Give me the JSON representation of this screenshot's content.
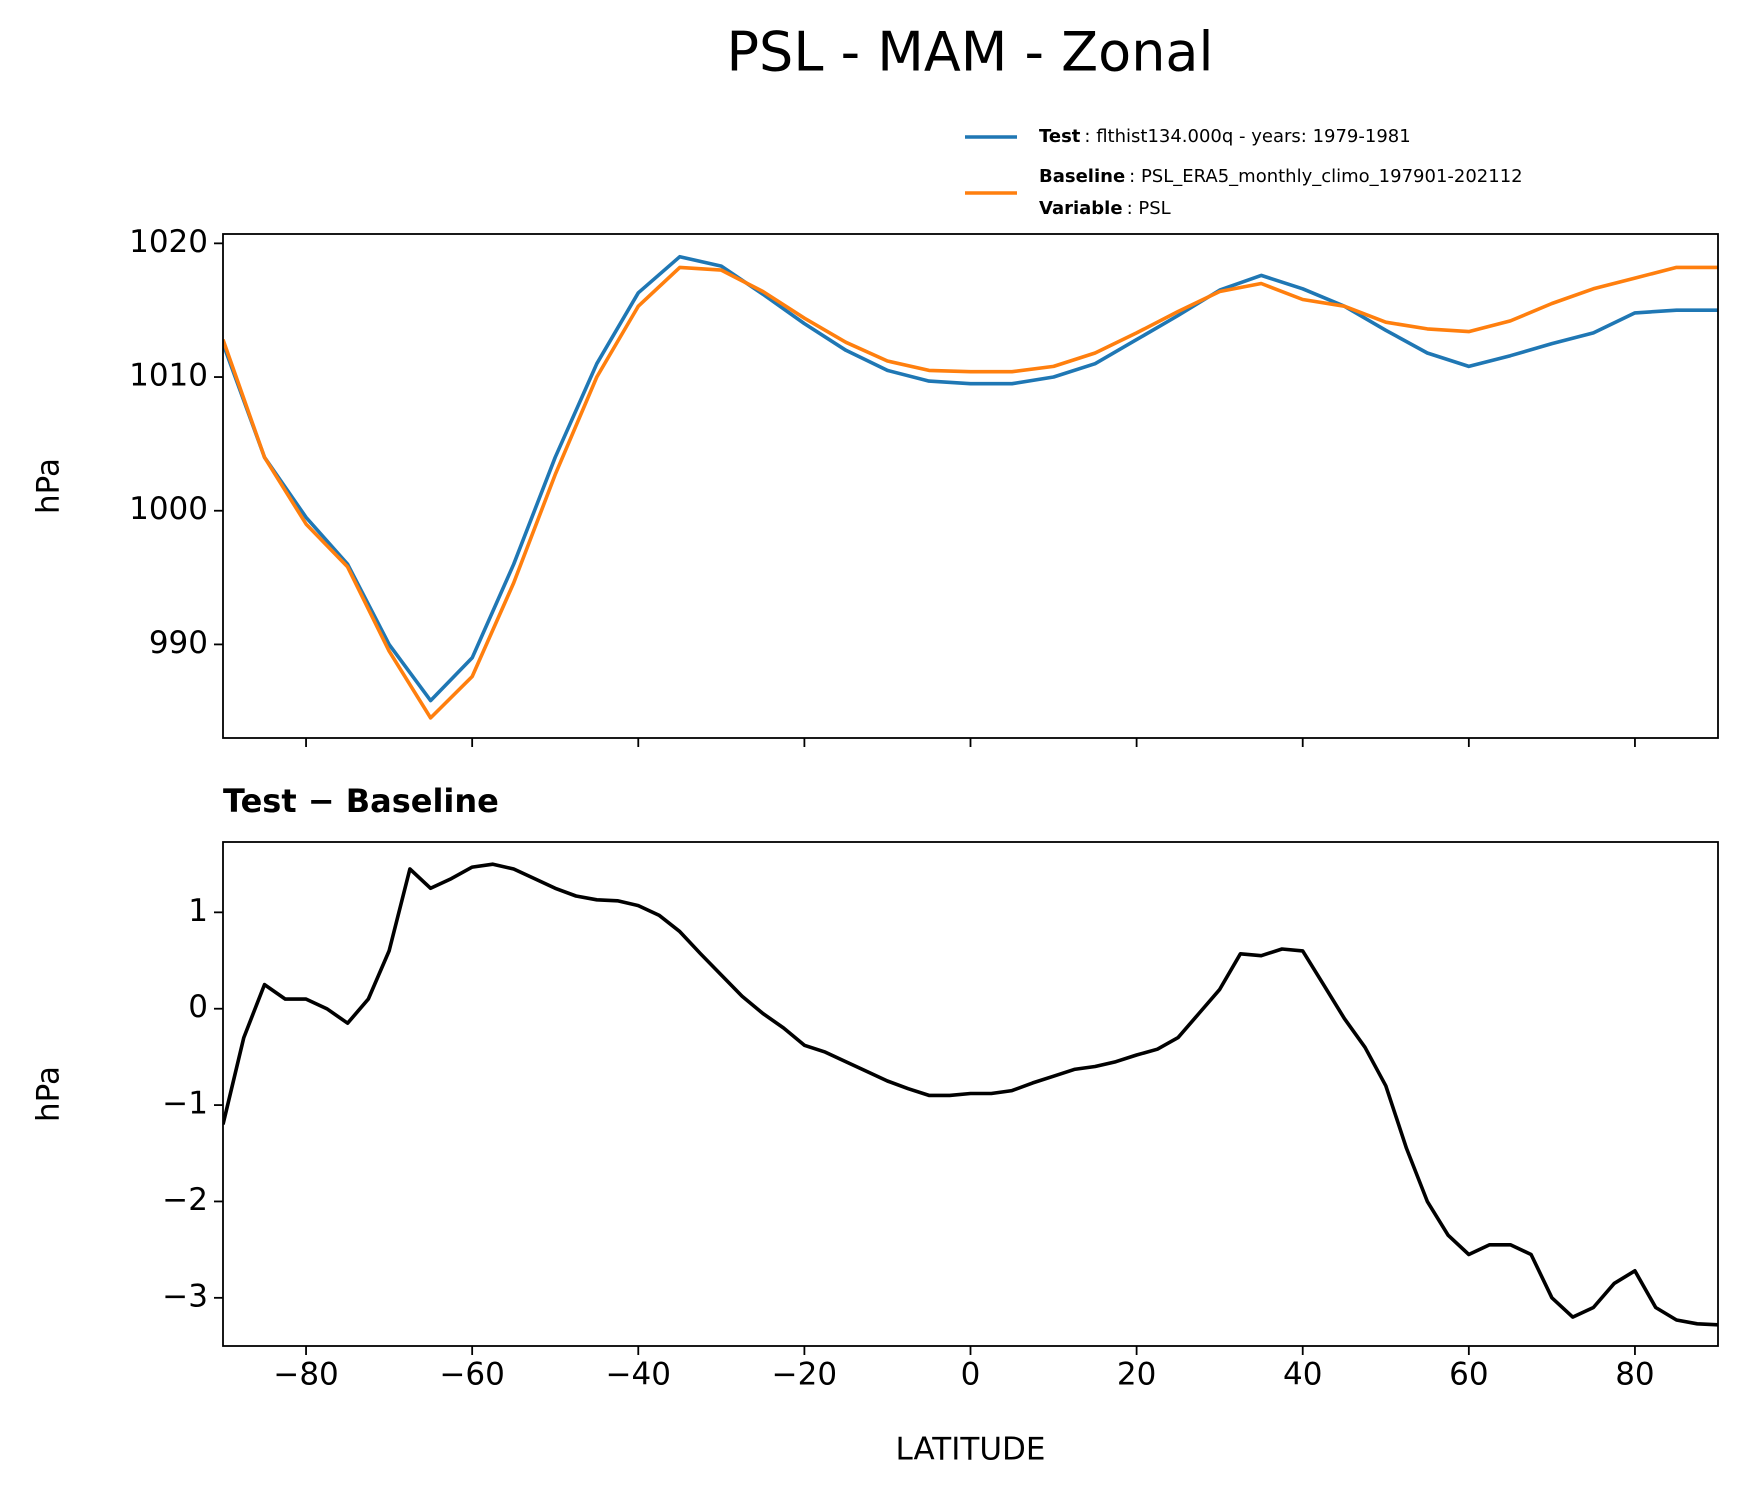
{
  "title": "PSL - MAM - Zonal",
  "chart_data": [
    {
      "type": "line",
      "ylabel": "hPa",
      "x": [
        -90,
        -85,
        -80,
        -75,
        -70,
        -65,
        -60,
        -55,
        -50,
        -45,
        -40,
        -35,
        -30,
        -25,
        -20,
        -15,
        -10,
        -5,
        0,
        5,
        10,
        15,
        20,
        25,
        30,
        35,
        40,
        45,
        50,
        55,
        60,
        65,
        70,
        75,
        80,
        85,
        90
      ],
      "series": [
        {
          "name": "Test",
          "description": ": flthist134.000q - years: 1979-1981",
          "color": "#1f77b4",
          "values": [
            1012.5,
            1004,
            999.5,
            996,
            990,
            985.8,
            989,
            996,
            1004,
            1011,
            1016.3,
            1019,
            1018.3,
            1016.2,
            1014,
            1012,
            1010.5,
            1009.7,
            1009.5,
            1009.5,
            1010,
            1011,
            1012.8,
            1014.6,
            1016.5,
            1017.6,
            1016.6,
            1015.3,
            1013.5,
            1011.8,
            1010.8,
            1011.6,
            1012.5,
            1013.3,
            1014.8,
            1015,
            1015
          ]
        },
        {
          "name": "Baseline",
          "description": ": PSL_ERA5_monthly_climo_197901-202112",
          "color": "#ff7f0e",
          "values": [
            1012.8,
            1004,
            999,
            995.8,
            989.5,
            984.5,
            987.6,
            994.6,
            1002.7,
            1010,
            1015.3,
            1018.2,
            1018,
            1016.4,
            1014.4,
            1012.6,
            1011.2,
            1010.5,
            1010.4,
            1010.4,
            1010.8,
            1011.8,
            1013.3,
            1014.9,
            1016.4,
            1017,
            1015.8,
            1015.3,
            1014.1,
            1013.6,
            1013.4,
            1014.2,
            1015.5,
            1016.6,
            1017.4,
            1018.2,
            1018.2
          ]
        }
      ],
      "legend_extra": {
        "name": "Variable",
        "description": ": PSL"
      },
      "xlim": [
        -90,
        90
      ],
      "xticks": [
        -80,
        -60,
        -40,
        -20,
        0,
        20,
        40,
        60,
        80
      ],
      "ylim": [
        983,
        1020.7
      ],
      "yticks": [
        990,
        1000,
        1010,
        1020
      ]
    },
    {
      "type": "line",
      "title": "Test − Baseline",
      "xlabel": "LATITUDE",
      "ylabel": "hPa",
      "x": [
        -90,
        -87.5,
        -85,
        -82.5,
        -80,
        -77.5,
        -75,
        -72.5,
        -70,
        -67.5,
        -65,
        -62.5,
        -60,
        -57.5,
        -55,
        -52.5,
        -50,
        -47.5,
        -45,
        -42.5,
        -40,
        -37.5,
        -35,
        -32.5,
        -30,
        -27.5,
        -25,
        -22.5,
        -20,
        -17.5,
        -15,
        -12.5,
        -10,
        -7.5,
        -5,
        -2.5,
        0,
        2.5,
        5,
        7.5,
        10,
        12.5,
        15,
        17.5,
        20,
        22.5,
        25,
        27.5,
        30,
        32.5,
        35,
        37.5,
        40,
        42.5,
        45,
        47.5,
        50,
        52.5,
        55,
        57.5,
        60,
        62.5,
        65,
        67.5,
        70,
        72.5,
        75,
        77.5,
        80,
        82.5,
        85,
        87.5,
        90
      ],
      "series": [
        {
          "color": "#000000",
          "values": [
            -1.2,
            -0.3,
            0.25,
            0.1,
            0.1,
            0,
            -0.15,
            0.1,
            0.6,
            1.45,
            1.25,
            1.35,
            1.47,
            1.5,
            1.45,
            1.35,
            1.25,
            1.17,
            1.13,
            1.12,
            1.07,
            0.97,
            0.8,
            0.57,
            0.35,
            0.13,
            -0.05,
            -0.2,
            -0.38,
            -0.45,
            -0.55,
            -0.65,
            -0.75,
            -0.83,
            -0.9,
            -0.9,
            -0.88,
            -0.88,
            -0.85,
            -0.77,
            -0.7,
            -0.63,
            -0.6,
            -0.55,
            -0.48,
            -0.42,
            -0.3,
            -0.05,
            0.2,
            0.57,
            0.55,
            0.62,
            0.6,
            0.25,
            -0.1,
            -0.4,
            -0.8,
            -1.45,
            -2.0,
            -2.35,
            -2.55,
            -2.45,
            -2.45,
            -2.55,
            -3.0,
            -3.2,
            -3.1,
            -2.85,
            -2.72,
            -3.1,
            -3.23,
            -3.27,
            -3.28
          ]
        }
      ],
      "xlim": [
        -90,
        90
      ],
      "xticks": [
        {
          "value": -80,
          "label": "−80"
        },
        {
          "value": -60,
          "label": "−60"
        },
        {
          "value": -40,
          "label": "−40"
        },
        {
          "value": -20,
          "label": "−20"
        },
        0,
        20,
        40,
        60,
        80
      ],
      "ylim": [
        -3.5,
        1.73
      ],
      "yticks": [
        {
          "value": -3,
          "label": "−3"
        },
        {
          "value": -2,
          "label": "−2"
        },
        {
          "value": -1,
          "label": "−1"
        },
        0,
        1
      ]
    }
  ]
}
